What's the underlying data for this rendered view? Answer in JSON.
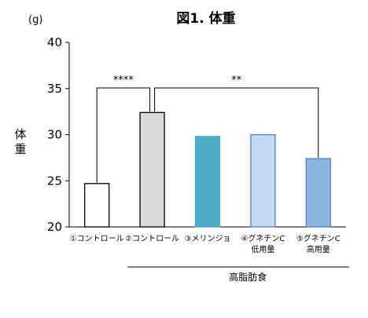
{
  "chart_data": {
    "type": "bar",
    "title": "図1. 体重",
    "unit": "(g)",
    "ylabel": [
      "体",
      "重"
    ],
    "ylim": [
      20,
      40
    ],
    "yticks": [
      20,
      25,
      30,
      35,
      40
    ],
    "categories": [
      {
        "lines": [
          "①コントロール"
        ]
      },
      {
        "lines": [
          "②コントロール"
        ]
      },
      {
        "lines": [
          "③メリンジョ"
        ]
      },
      {
        "lines": [
          "④グネチンC",
          "低用量"
        ]
      },
      {
        "lines": [
          "⑤グネチンC",
          "高用量"
        ]
      }
    ],
    "values": [
      24.7,
      32.4,
      29.8,
      30.0,
      27.4
    ],
    "bar_fill": [
      "#ffffff",
      "#d9d9d9",
      "#4bacc6",
      "#c5d9f1",
      "#8db4e2"
    ],
    "bar_stroke": [
      "#000000",
      "#000000",
      "#4bacc6",
      "#4f81bd",
      "#4f81bd"
    ],
    "significance": [
      {
        "from": 0,
        "to": 1,
        "label": "****"
      },
      {
        "from": 1,
        "to": 4,
        "label": "**"
      }
    ],
    "group_label": {
      "text": "高脂肪食",
      "from": 1,
      "to": 4
    },
    "grid": false,
    "legend": "none"
  }
}
